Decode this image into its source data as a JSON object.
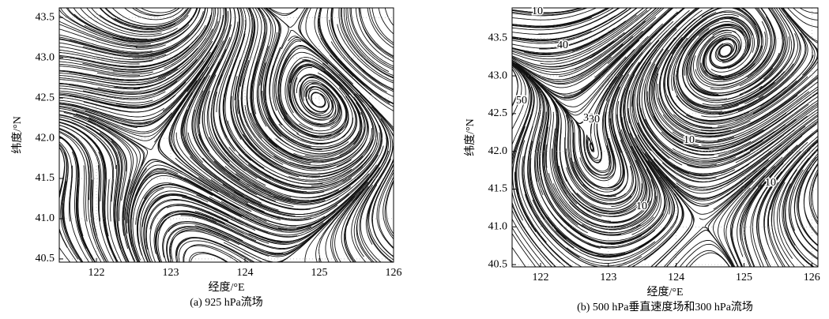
{
  "chart_data": [
    {
      "type": "streamline",
      "caption": "(a) 925 hPa流场",
      "xlabel": "经度/°E",
      "ylabel": "纬度/°N",
      "xlim": [
        121.5,
        126.0
      ],
      "ylim": [
        40.46,
        43.62
      ],
      "xticks": [
        122,
        123,
        124,
        125,
        126
      ],
      "yticks": [
        40.5,
        {
          "value": 41,
          "label": "41.0"
        },
        41.5,
        {
          "value": 42,
          "label": "42.0"
        },
        42.5,
        {
          "value": 43,
          "label": "43.0"
        },
        43.5
      ],
      "grid": true
    },
    {
      "type": "streamline",
      "caption": "(b) 500 hPa垂直速度场和300 hPa流场",
      "xlabel": "经度/°E",
      "ylabel": "纬度/°N",
      "xlim": [
        121.58,
        126.09
      ],
      "ylim": [
        40.47,
        43.9
      ],
      "xticks": [
        122,
        123,
        124,
        125,
        126
      ],
      "yticks": [
        40.5,
        {
          "value": 41,
          "label": "41.0"
        },
        41.5,
        {
          "value": 42,
          "label": "42.0"
        },
        42.5,
        {
          "value": 43,
          "label": "43.0"
        },
        43.5
      ],
      "grid": true,
      "annotations": [
        "10",
        "40",
        "30",
        "50",
        "30",
        "10",
        "10",
        "10"
      ]
    }
  ]
}
